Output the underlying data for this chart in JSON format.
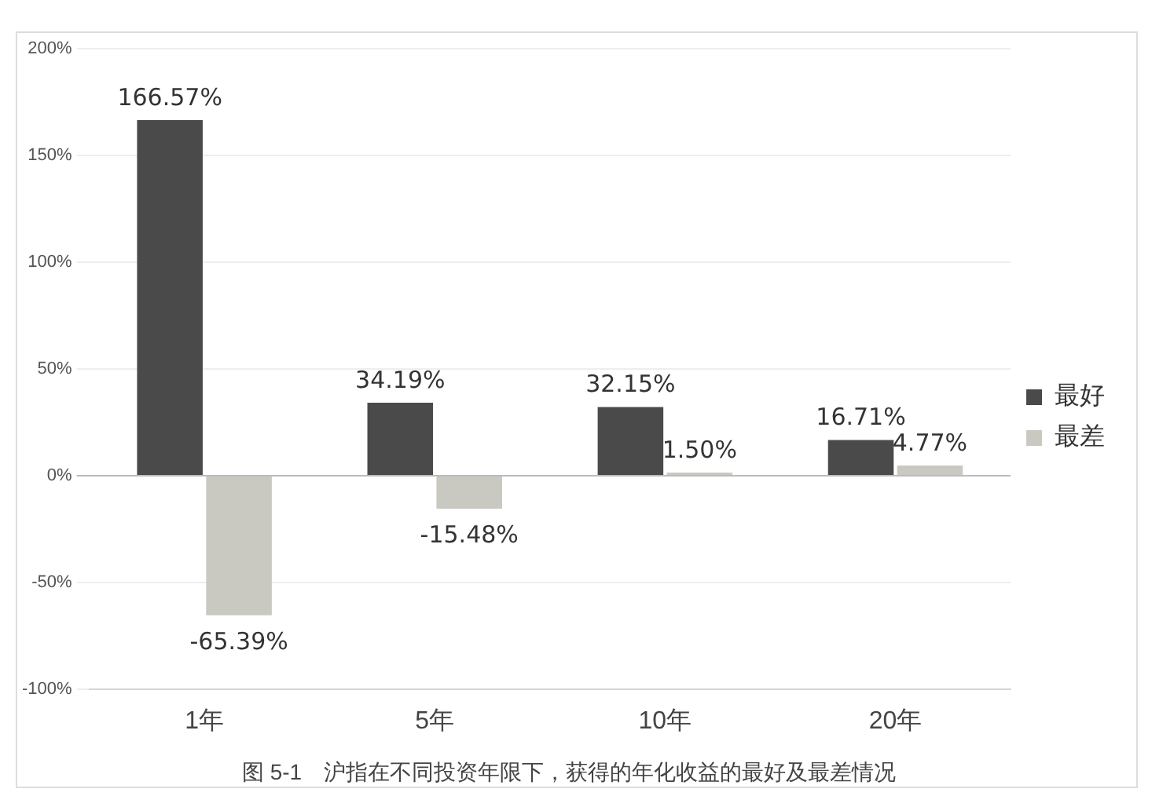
{
  "chart_data": {
    "type": "bar",
    "title": "图 5-1　沪指在不同投资年限下，获得的年化收益的最好及最差情况",
    "categories": [
      "1年",
      "5年",
      "10年",
      "20年"
    ],
    "series": [
      {
        "name": "最好",
        "color": "#4a4a4a",
        "values": [
          166.57,
          34.19,
          32.15,
          16.71
        ],
        "value_labels": [
          "166.57%",
          "34.19%",
          "32.15%",
          "16.71%"
        ]
      },
      {
        "name": "最差",
        "color": "#c9c9c1",
        "values": [
          -65.39,
          -15.48,
          1.5,
          4.77
        ],
        "value_labels": [
          "-65.39%",
          "-15.48%",
          "1.50%",
          "4.77%"
        ]
      }
    ],
    "ylim": [
      -100,
      200
    ],
    "yticks": [
      {
        "value": -100,
        "label": "-100%"
      },
      {
        "value": -50,
        "label": "-50%"
      },
      {
        "value": 0,
        "label": "0%"
      },
      {
        "value": 50,
        "label": "50%"
      },
      {
        "value": 100,
        "label": "100%"
      },
      {
        "value": 150,
        "label": "150%"
      },
      {
        "value": 200,
        "label": "200%"
      }
    ],
    "grid": "y",
    "legend": "right"
  }
}
